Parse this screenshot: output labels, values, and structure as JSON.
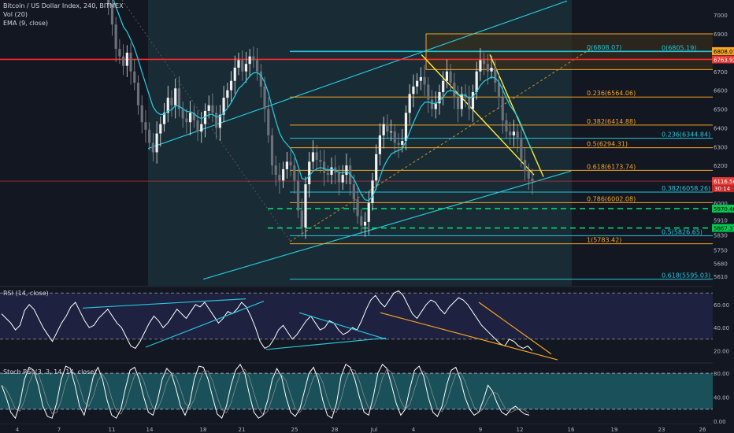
{
  "header": {
    "title": "Bitcoin / US Dollar Index, 240, BITMEX",
    "vol": "Vol (20)",
    "ema": "EMA (9, close)"
  },
  "rsi_legend": "RSI (14, close)",
  "stoch_legend": "Stoch RSI (3, 3, 14, 14, close)",
  "colors": {
    "background": "#131722",
    "price_line": "#e0e0e0",
    "ema": "#26c6da",
    "channel": "#26c6da",
    "fib_orange": "#f5a623",
    "fib_cyan": "#26c6da",
    "wedge": "#ffeb3b",
    "resistance_red": "#ff2a2a",
    "support_green": "#00e676",
    "rsi_line": "#ffffff"
  },
  "chart_data": [
    {
      "type": "line",
      "panel": "price",
      "title": "Bitcoin / US Dollar Index, 240, BITMEX",
      "y_axis_ticks": [
        7000,
        6900,
        6800,
        6700,
        6600,
        6500,
        6400,
        6300,
        6200,
        6100,
        6000,
        5910,
        5830,
        5750,
        5680,
        5610
      ],
      "ylim": [
        5560,
        7080
      ],
      "x_axis_ticks": [
        "4",
        "7",
        "11",
        "14",
        "18",
        "21",
        "25",
        "28",
        "Jul",
        "4",
        "9",
        "12",
        "16",
        "19",
        "23",
        "26"
      ],
      "price_badges": {
        "resistance": "6763.92",
        "current": "6116.56",
        "current_sub": "30:14",
        "green_upper": "5970.46",
        "green_lower": "5867.37"
      },
      "fib_left": [
        {
          "label": "0(6808.07)",
          "value": 6808.07
        },
        {
          "label": "0.236(6564.06)",
          "value": 6564.06
        },
        {
          "label": "0.382(6414.88)",
          "value": 6414.88
        },
        {
          "label": "0.5(6294.31)",
          "value": 6294.31
        },
        {
          "label": "0.618(6173.74)",
          "value": 6173.74
        },
        {
          "label": "0.786(6002.08)",
          "value": 6002.08
        },
        {
          "label": "1(5783.42)",
          "value": 5783.42
        }
      ],
      "fib_right": [
        {
          "label": "0(6805.19)",
          "value": 6805.19
        },
        {
          "label": "0.236(6344.84)",
          "value": 6344.84
        },
        {
          "label": "0.382(6058.26)",
          "value": 6058.26
        },
        {
          "label": "0.5(5826.65)",
          "value": 5826.65
        },
        {
          "label": "0.618(5595.03)",
          "value": 5595.03
        }
      ],
      "close_series": [
        7160,
        7050,
        6950,
        6820,
        6780,
        6730,
        6800,
        6700,
        6640,
        6520,
        6430,
        6390,
        6320,
        6270,
        6370,
        6420,
        6480,
        6560,
        6520,
        6610,
        6500,
        6450,
        6430,
        6480,
        6440,
        6380,
        6420,
        6490,
        6520,
        6480,
        6400,
        6470,
        6560,
        6600,
        6650,
        6720,
        6760,
        6700,
        6740,
        6780,
        6760,
        6700,
        6620,
        6500,
        6360,
        6200,
        6150,
        6120,
        6180,
        6220,
        6200,
        6120,
        5960,
        5870,
        6100,
        6220,
        6270,
        6230,
        6220,
        6160,
        6150,
        6190,
        6160,
        6110,
        6150,
        6200,
        6100,
        6020,
        5930,
        5880,
        5900,
        6000,
        6120,
        6260,
        6360,
        6420,
        6380,
        6380,
        6320,
        6310,
        6330,
        6480,
        6580,
        6620,
        6650,
        6670,
        6630,
        6550,
        6500,
        6530,
        6590,
        6650,
        6700,
        6640,
        6560,
        6500,
        6580,
        6560,
        6500,
        6590,
        6700,
        6760,
        6740,
        6700,
        6720,
        6640,
        6560,
        6440,
        6380,
        6360,
        6380,
        6340,
        6230,
        6170,
        6130,
        6116
      ]
    },
    {
      "type": "line",
      "panel": "rsi",
      "title": "RSI (14, close)",
      "y_axis_ticks": [
        60.0,
        40.0,
        20.0
      ],
      "ylim": [
        10,
        75
      ],
      "bands": [
        70,
        30
      ],
      "values": [
        52,
        48,
        44,
        38,
        42,
        55,
        60,
        56,
        48,
        40,
        34,
        28,
        36,
        44,
        50,
        58,
        62,
        54,
        46,
        40,
        42,
        48,
        52,
        56,
        50,
        44,
        40,
        32,
        24,
        22,
        28,
        36,
        44,
        50,
        46,
        40,
        44,
        50,
        56,
        52,
        48,
        54,
        60,
        58,
        62,
        56,
        50,
        44,
        48,
        54,
        52,
        56,
        62,
        58,
        50,
        40,
        28,
        22,
        24,
        30,
        38,
        42,
        36,
        30,
        34,
        40,
        46,
        50,
        44,
        38,
        40,
        46,
        44,
        38,
        34,
        36,
        40,
        38,
        46,
        56,
        64,
        68,
        62,
        58,
        64,
        70,
        72,
        68,
        60,
        52,
        48,
        54,
        60,
        64,
        62,
        56,
        52,
        58,
        62,
        66,
        64,
        60,
        54,
        48,
        42,
        38,
        34,
        30,
        26,
        24,
        30,
        28,
        24,
        22,
        24,
        20
      ]
    },
    {
      "type": "line",
      "panel": "stoch_rsi",
      "title": "Stoch RSI (3, 3, 14, 14, close)",
      "y_axis_ticks": [
        80.0,
        40.0,
        0.0
      ],
      "ylim": [
        -4,
        96
      ],
      "bands": [
        80,
        20
      ],
      "k_values": [
        60,
        40,
        15,
        5,
        30,
        70,
        90,
        85,
        60,
        25,
        8,
        5,
        30,
        70,
        92,
        88,
        60,
        25,
        10,
        40,
        75,
        90,
        70,
        35,
        10,
        5,
        20,
        55,
        85,
        90,
        70,
        40,
        15,
        10,
        35,
        70,
        88,
        80,
        55,
        25,
        10,
        30,
        70,
        92,
        90,
        70,
        40,
        12,
        5,
        25,
        60,
        85,
        95,
        80,
        45,
        15,
        5,
        10,
        35,
        70,
        88,
        75,
        40,
        15,
        8,
        20,
        50,
        80,
        90,
        70,
        35,
        10,
        5,
        30,
        75,
        95,
        90,
        70,
        40,
        15,
        10,
        40,
        80,
        95,
        88,
        60,
        30,
        10,
        20,
        55,
        85,
        92,
        75,
        40,
        15,
        8,
        25,
        60,
        85,
        90,
        70,
        40,
        20,
        10,
        15,
        35,
        60,
        50,
        30,
        15,
        10,
        20,
        25,
        18,
        12,
        10
      ]
    }
  ]
}
